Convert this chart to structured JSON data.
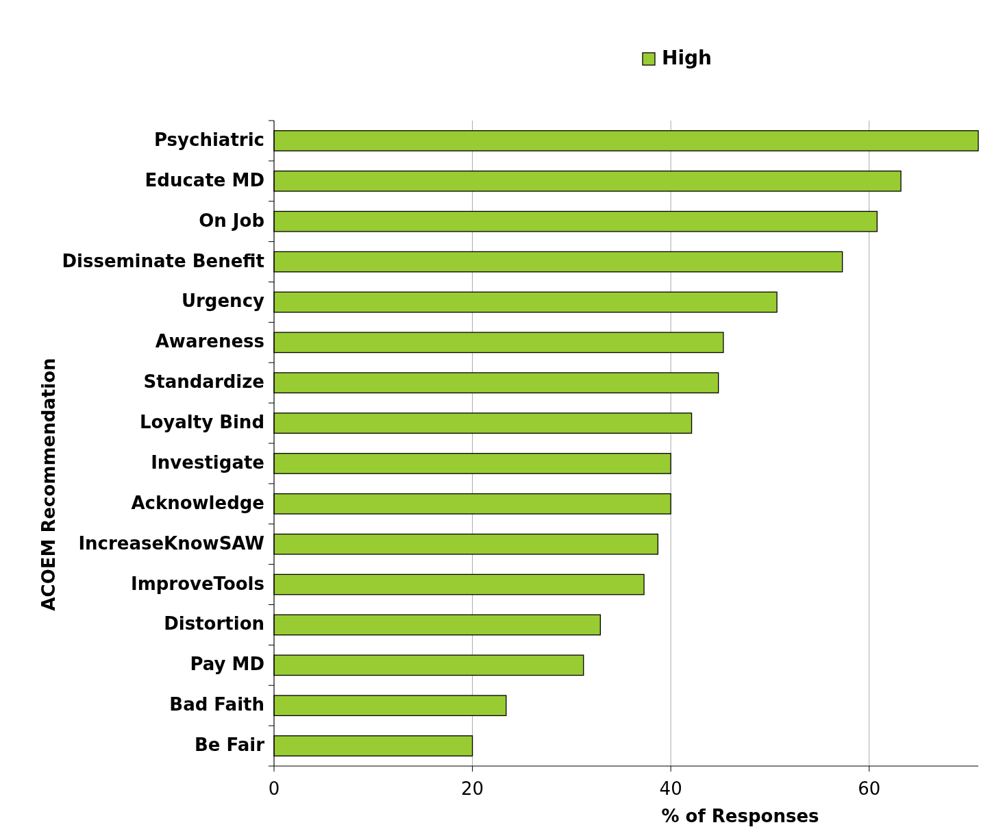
{
  "chart_data": {
    "type": "bar",
    "orientation": "horizontal",
    "ylabel": "ACOEM Recommendation",
    "xlabel": "% of Responses",
    "categories": [
      "Psychiatric",
      "Educate MD",
      "On Job",
      "Disseminate Benefit",
      "Urgency",
      "Awareness",
      "Standardize",
      "Loyalty Bind",
      "Investigate",
      "Acknowledge",
      "IncreaseKnowSAW",
      "ImproveTools",
      "Distortion",
      "Pay MD",
      "Bad Faith",
      "Be Fair"
    ],
    "series": [
      {
        "name": "High",
        "color": "#99cc33",
        "values": [
          71,
          63.2,
          60.8,
          57.3,
          50.7,
          45.3,
          44.8,
          42.1,
          40,
          40,
          38.7,
          37.3,
          32.9,
          31.2,
          23.4,
          20
        ]
      }
    ],
    "xlim": [
      0,
      71
    ],
    "xticks": [
      0,
      20,
      40,
      60
    ],
    "grid": "x",
    "legend": "top"
  }
}
